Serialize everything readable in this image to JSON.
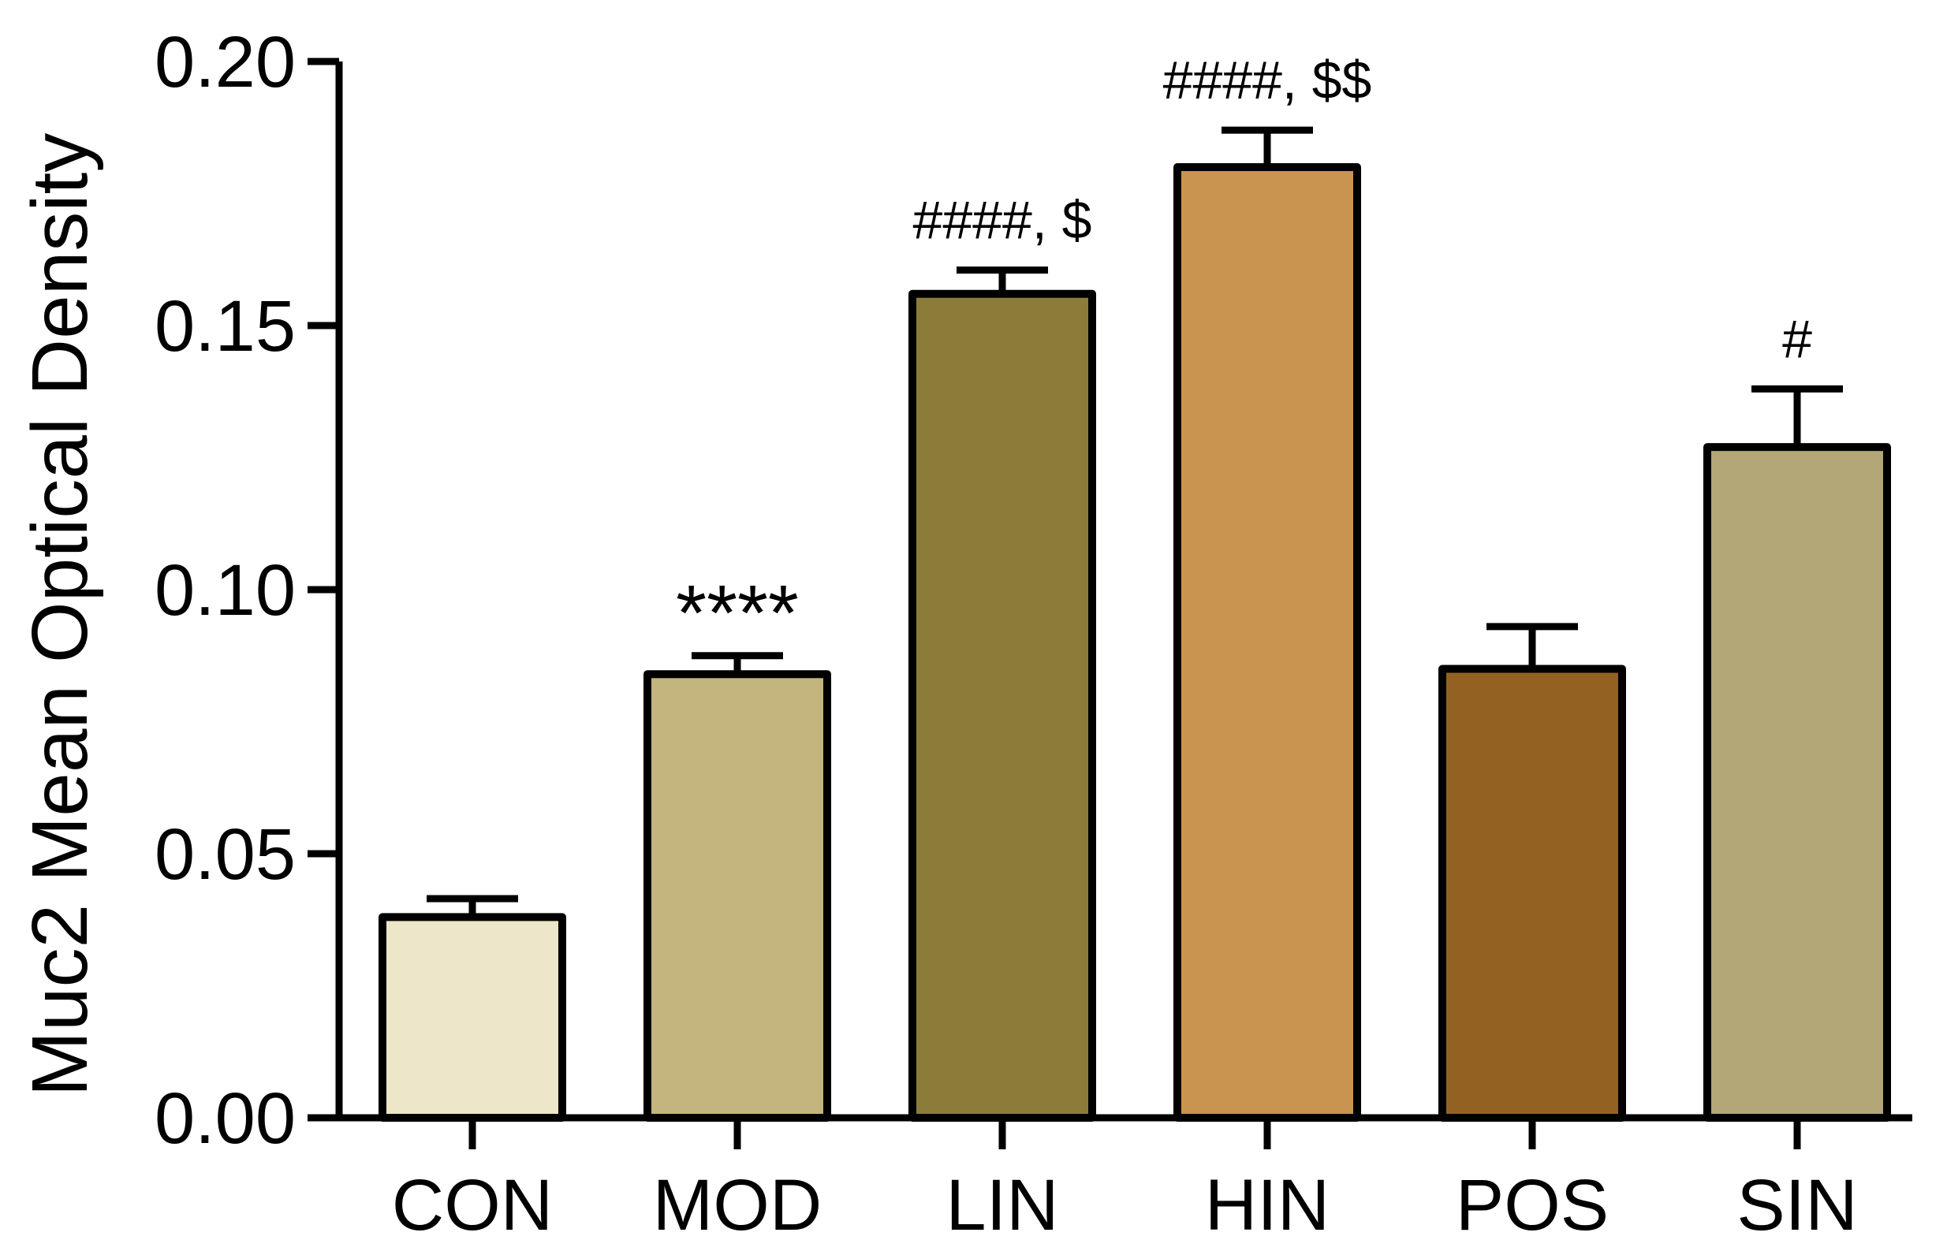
{
  "chart_data": {
    "type": "bar",
    "ylabel": "Muc2 Mean Optical Density",
    "xlabel": "",
    "ylim": [
      0,
      0.2
    ],
    "yticks": [
      "0.00",
      "0.05",
      "0.10",
      "0.15",
      "0.20"
    ],
    "yticks_values": [
      0,
      0.05,
      0.1,
      0.15,
      0.2
    ],
    "categories": [
      "CON",
      "MOD",
      "LIN",
      "HIN",
      "POS",
      "SIN"
    ],
    "values": [
      0.038,
      0.084,
      0.156,
      0.18,
      0.085,
      0.127
    ],
    "errors": [
      0.0035,
      0.0035,
      0.0045,
      0.007,
      0.008,
      0.011
    ],
    "colors": [
      "#ede6c8",
      "#c3b57d",
      "#8c7c39",
      "#c9944f",
      "#936121",
      "#b3a677"
    ],
    "annotations": [
      "",
      "****",
      "####, $",
      "####, $$",
      "",
      "#"
    ],
    "grid": false,
    "legend": "none"
  }
}
